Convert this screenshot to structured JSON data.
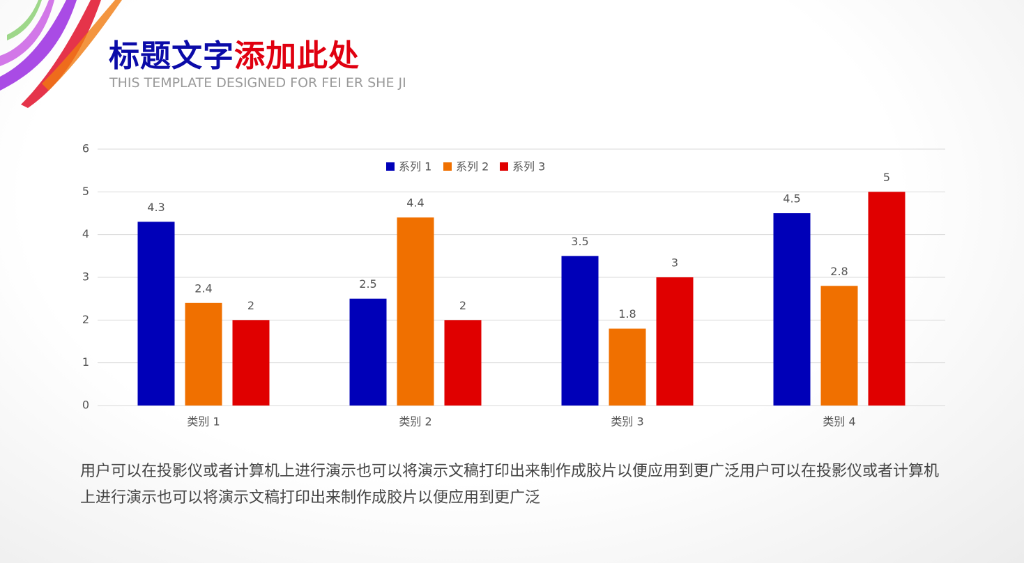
{
  "header": {
    "title_blue": "标题文字",
    "title_red": "添加此处",
    "subtitle": "THIS TEMPLATE DESIGNED FOR FEI ER SHE JI"
  },
  "chart_data": {
    "type": "bar",
    "categories": [
      "类别 1",
      "类别 2",
      "类别 3",
      "类别 4"
    ],
    "series": [
      {
        "name": "系列 1",
        "color": "#0000b8",
        "values": [
          4.3,
          2.5,
          3.5,
          4.5
        ]
      },
      {
        "name": "系列 2",
        "color": "#f07000",
        "values": [
          2.4,
          4.4,
          1.8,
          2.8
        ]
      },
      {
        "name": "系列 3",
        "color": "#e00000",
        "values": [
          2,
          2,
          3,
          5
        ]
      }
    ],
    "ylim": [
      0,
      6
    ],
    "yticks": [
      0,
      1,
      2,
      3,
      4,
      5,
      6
    ],
    "grid": true,
    "legend": "top"
  },
  "body": "用户可以在投影仪或者计算机上进行演示也可以将演示文稿打印出来制作成胶片以便应用到更广泛用户可以在投影仪或者计算机上进行演示也可以将演示文稿打印出来制作成胶片以便应用到更广泛"
}
